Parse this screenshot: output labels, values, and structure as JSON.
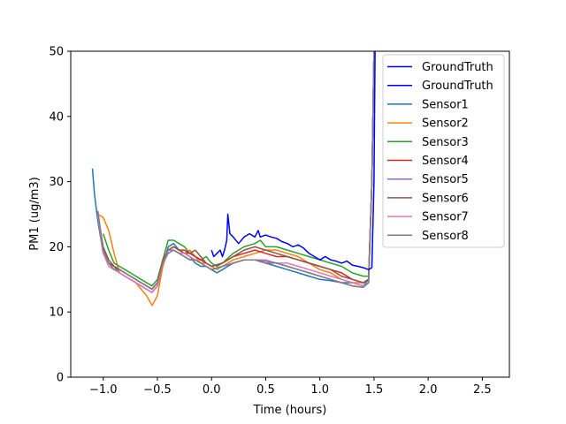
{
  "chart_data": {
    "type": "line",
    "xlabel": "Time (hours)",
    "ylabel": "PM1 (ug/m3)",
    "xlim": [
      -1.3,
      2.75
    ],
    "ylim": [
      0,
      50
    ],
    "x_ticks": [
      -1.0,
      -0.5,
      0.0,
      0.5,
      1.0,
      1.5,
      2.0,
      2.5
    ],
    "x_tick_labels": [
      "−1.0",
      "−0.5",
      "0.0",
      "0.5",
      "1.0",
      "1.5",
      "2.0",
      "2.5"
    ],
    "y_ticks": [
      0,
      10,
      20,
      30,
      40,
      50
    ],
    "y_tick_labels": [
      "0",
      "10",
      "20",
      "30",
      "40",
      "50"
    ],
    "grid": false,
    "legend_position": "top-right",
    "series": [
      {
        "name": "GroundTruth",
        "color": "#0000ff",
        "x": [
          0.0,
          0.02,
          0.05,
          0.08,
          0.1,
          0.12,
          0.14,
          0.15,
          0.17,
          0.2,
          0.25,
          0.3,
          0.35,
          0.4,
          0.43,
          0.45,
          0.5,
          0.55,
          0.6,
          0.65,
          0.7,
          0.75,
          0.8,
          0.85,
          0.9,
          0.95,
          1.0,
          1.05,
          1.1,
          1.15,
          1.2,
          1.25,
          1.3,
          1.35,
          1.4,
          1.45,
          1.48,
          1.5,
          1.51
        ],
        "y": [
          19.5,
          18.5,
          19.0,
          19.5,
          18.5,
          19.5,
          21.0,
          25.0,
          22.0,
          21.5,
          20.5,
          21.5,
          22.0,
          21.5,
          22.5,
          21.5,
          21.8,
          21.5,
          21.3,
          20.8,
          20.5,
          20.0,
          20.3,
          19.8,
          19.0,
          18.5,
          18.0,
          18.5,
          18.0,
          17.8,
          17.5,
          17.8,
          17.2,
          17.0,
          16.8,
          16.5,
          16.8,
          30.0,
          50.0
        ]
      },
      {
        "name": "GroundTruth",
        "color": "#0000ff",
        "x": [],
        "y": []
      },
      {
        "name": "Sensor1",
        "color": "#1f77b4",
        "x": [
          -1.1,
          -1.08,
          -1.05,
          -1.0,
          -0.95,
          -0.9,
          -0.85,
          -0.8,
          -0.75,
          -0.7,
          -0.65,
          -0.6,
          -0.55,
          -0.5,
          -0.45,
          -0.4,
          -0.35,
          -0.3,
          -0.25,
          -0.2,
          -0.15,
          -0.1,
          -0.05,
          0.0,
          0.05,
          0.1,
          0.15,
          0.2,
          0.3,
          0.4,
          0.5,
          0.6,
          0.7,
          0.8,
          0.9,
          1.0,
          1.1,
          1.2,
          1.3,
          1.4,
          1.45,
          1.48,
          1.5
        ],
        "y": [
          32.0,
          28.0,
          24.0,
          19.0,
          17.5,
          17.0,
          16.0,
          15.5,
          15.0,
          14.5,
          14.0,
          13.5,
          13.0,
          14.0,
          17.0,
          20.0,
          20.5,
          19.5,
          19.0,
          18.5,
          17.5,
          17.0,
          17.0,
          16.5,
          16.0,
          16.5,
          17.0,
          17.5,
          18.0,
          18.0,
          17.5,
          17.0,
          16.5,
          16.0,
          15.5,
          15.0,
          14.8,
          14.5,
          14.5,
          14.0,
          15.0,
          30.0,
          50.0
        ]
      },
      {
        "name": "Sensor2",
        "color": "#ff7f0e",
        "x": [
          -1.05,
          -1.0,
          -0.95,
          -0.9,
          -0.85,
          -0.8,
          -0.75,
          -0.7,
          -0.65,
          -0.6,
          -0.55,
          -0.5,
          -0.45,
          -0.4,
          -0.35,
          -0.3,
          -0.25,
          -0.2,
          -0.15,
          -0.1,
          -0.05,
          0.0,
          0.05,
          0.1,
          0.2,
          0.3,
          0.4,
          0.5,
          0.6,
          0.7,
          0.8,
          0.9,
          1.0,
          1.1,
          1.2,
          1.3,
          1.4,
          1.45,
          1.48,
          1.5
        ],
        "y": [
          25.0,
          24.5,
          22.5,
          19.0,
          16.0,
          15.5,
          15.0,
          14.5,
          13.5,
          12.5,
          11.0,
          12.5,
          17.0,
          19.5,
          20.0,
          19.5,
          19.0,
          19.5,
          18.5,
          17.5,
          17.5,
          17.0,
          16.5,
          17.0,
          18.0,
          18.5,
          19.0,
          19.5,
          19.5,
          19.0,
          18.5,
          17.5,
          16.5,
          16.0,
          15.0,
          14.5,
          14.5,
          15.0,
          30.0,
          50.0
        ]
      },
      {
        "name": "Sensor3",
        "color": "#2ca02c",
        "x": [
          -1.0,
          -0.95,
          -0.9,
          -0.85,
          -0.8,
          -0.75,
          -0.7,
          -0.65,
          -0.6,
          -0.55,
          -0.5,
          -0.45,
          -0.4,
          -0.35,
          -0.3,
          -0.25,
          -0.2,
          -0.15,
          -0.1,
          -0.05,
          0.0,
          0.05,
          0.1,
          0.2,
          0.3,
          0.4,
          0.45,
          0.5,
          0.6,
          0.7,
          0.8,
          0.9,
          1.0,
          1.1,
          1.2,
          1.3,
          1.4,
          1.45,
          1.48,
          1.5
        ],
        "y": [
          22.0,
          19.5,
          17.5,
          17.0,
          16.5,
          16.0,
          15.5,
          15.0,
          14.5,
          14.0,
          15.0,
          18.0,
          21.0,
          21.0,
          20.5,
          20.0,
          19.0,
          18.5,
          18.0,
          18.5,
          17.5,
          17.0,
          17.5,
          19.0,
          20.0,
          20.5,
          21.0,
          20.0,
          20.0,
          19.5,
          19.0,
          18.5,
          18.0,
          17.5,
          17.0,
          16.0,
          15.5,
          15.5,
          30.0,
          50.0
        ]
      },
      {
        "name": "Sensor4",
        "color": "#d62728",
        "x": [
          -1.05,
          -1.0,
          -0.95,
          -0.9,
          -0.85,
          -0.8,
          -0.75,
          -0.7,
          -0.65,
          -0.6,
          -0.55,
          -0.5,
          -0.45,
          -0.4,
          -0.35,
          -0.3,
          -0.25,
          -0.2,
          -0.15,
          -0.1,
          -0.05,
          0.0,
          0.1,
          0.2,
          0.3,
          0.4,
          0.5,
          0.6,
          0.7,
          0.8,
          0.9,
          1.0,
          1.1,
          1.2,
          1.3,
          1.4,
          1.45,
          1.48,
          1.5
        ],
        "y": [
          25.0,
          19.0,
          17.5,
          17.0,
          16.5,
          16.0,
          15.5,
          15.0,
          14.5,
          14.0,
          13.5,
          14.5,
          18.0,
          19.5,
          20.0,
          19.5,
          19.5,
          19.0,
          18.5,
          18.0,
          17.5,
          17.0,
          17.5,
          18.5,
          19.0,
          19.5,
          19.0,
          18.5,
          18.5,
          18.0,
          17.5,
          17.0,
          16.5,
          16.0,
          15.0,
          14.5,
          15.0,
          30.0,
          50.0
        ]
      },
      {
        "name": "Sensor5",
        "color": "#9467bd",
        "x": [
          -1.05,
          -1.0,
          -0.95,
          -0.9,
          -0.85,
          -0.8,
          -0.75,
          -0.7,
          -0.65,
          -0.6,
          -0.55,
          -0.5,
          -0.45,
          -0.4,
          -0.35,
          -0.3,
          -0.25,
          -0.2,
          -0.15,
          -0.1,
          -0.05,
          0.0,
          0.1,
          0.2,
          0.3,
          0.4,
          0.5,
          0.6,
          0.7,
          0.8,
          0.9,
          1.0,
          1.1,
          1.2,
          1.3,
          1.4,
          1.45,
          1.48,
          1.5
        ],
        "y": [
          25.5,
          19.5,
          17.5,
          16.5,
          16.0,
          15.5,
          15.0,
          14.5,
          14.0,
          13.5,
          13.0,
          14.0,
          17.5,
          19.0,
          19.5,
          19.0,
          18.5,
          18.0,
          18.0,
          17.5,
          17.0,
          16.5,
          17.0,
          17.5,
          18.0,
          18.0,
          17.5,
          17.5,
          17.0,
          16.5,
          16.0,
          15.5,
          15.0,
          14.5,
          14.0,
          13.8,
          14.5,
          30.0,
          50.0
        ]
      },
      {
        "name": "Sensor6",
        "color": "#8c564b",
        "x": [
          -1.05,
          -1.0,
          -0.95,
          -0.9,
          -0.85,
          -0.8,
          -0.75,
          -0.7,
          -0.65,
          -0.6,
          -0.55,
          -0.5,
          -0.45,
          -0.4,
          -0.35,
          -0.3,
          -0.25,
          -0.2,
          -0.15,
          -0.1,
          -0.05,
          0.0,
          0.1,
          0.2,
          0.3,
          0.4,
          0.5,
          0.6,
          0.7,
          0.8,
          0.9,
          1.0,
          1.1,
          1.2,
          1.3,
          1.4,
          1.45,
          1.48,
          1.5
        ],
        "y": [
          25.0,
          20.0,
          18.0,
          17.0,
          16.5,
          16.0,
          15.5,
          15.0,
          14.5,
          14.0,
          13.5,
          14.5,
          18.0,
          19.5,
          20.0,
          19.5,
          19.0,
          19.0,
          19.5,
          18.5,
          17.5,
          17.0,
          17.5,
          18.5,
          19.5,
          20.0,
          19.5,
          19.0,
          18.5,
          18.0,
          17.5,
          17.0,
          16.5,
          15.5,
          15.0,
          14.5,
          15.0,
          30.0,
          50.0
        ]
      },
      {
        "name": "Sensor7",
        "color": "#e377c2",
        "x": [
          -1.05,
          -1.0,
          -0.95,
          -0.9,
          -0.85,
          -0.8,
          -0.75,
          -0.7,
          -0.65,
          -0.6,
          -0.55,
          -0.5,
          -0.45,
          -0.4,
          -0.35,
          -0.3,
          -0.25,
          -0.2,
          -0.15,
          -0.1,
          -0.05,
          0.0,
          0.1,
          0.2,
          0.3,
          0.4,
          0.5,
          0.6,
          0.7,
          0.8,
          0.9,
          1.0,
          1.1,
          1.2,
          1.3,
          1.4,
          1.45,
          1.48,
          1.5
        ],
        "y": [
          25.0,
          19.0,
          17.0,
          16.5,
          16.0,
          15.5,
          15.0,
          14.5,
          14.0,
          13.5,
          13.0,
          14.0,
          17.5,
          19.5,
          19.5,
          19.0,
          19.0,
          18.5,
          18.0,
          17.5,
          17.0,
          16.5,
          17.0,
          17.5,
          18.0,
          18.0,
          18.0,
          17.5,
          17.5,
          17.0,
          16.5,
          16.0,
          15.5,
          15.0,
          14.5,
          14.0,
          14.5,
          30.0,
          50.0
        ]
      },
      {
        "name": "Sensor8",
        "color": "#7f7f7f",
        "x": [
          -1.05,
          -1.0,
          -0.95,
          -0.9,
          -0.85,
          -0.8,
          -0.75,
          -0.7,
          -0.65,
          -0.6,
          -0.55,
          -0.5,
          -0.45,
          -0.4,
          -0.35,
          -0.3,
          -0.25,
          -0.2,
          -0.15,
          -0.1,
          -0.05,
          0.0,
          0.1,
          0.2,
          0.3,
          0.4,
          0.5,
          0.6,
          0.7,
          0.8,
          0.9,
          1.0,
          1.1,
          1.2,
          1.3,
          1.4,
          1.45,
          1.48,
          1.5
        ],
        "y": [
          25.5,
          19.5,
          17.5,
          16.5,
          16.5,
          16.0,
          15.5,
          15.0,
          14.5,
          14.0,
          13.5,
          14.5,
          17.5,
          19.5,
          19.5,
          19.0,
          18.5,
          18.0,
          18.0,
          17.5,
          17.0,
          16.5,
          17.0,
          17.5,
          18.0,
          18.0,
          17.8,
          17.5,
          17.0,
          16.5,
          16.0,
          15.5,
          15.0,
          14.5,
          14.0,
          13.8,
          14.5,
          30.0,
          50.0
        ]
      }
    ]
  }
}
